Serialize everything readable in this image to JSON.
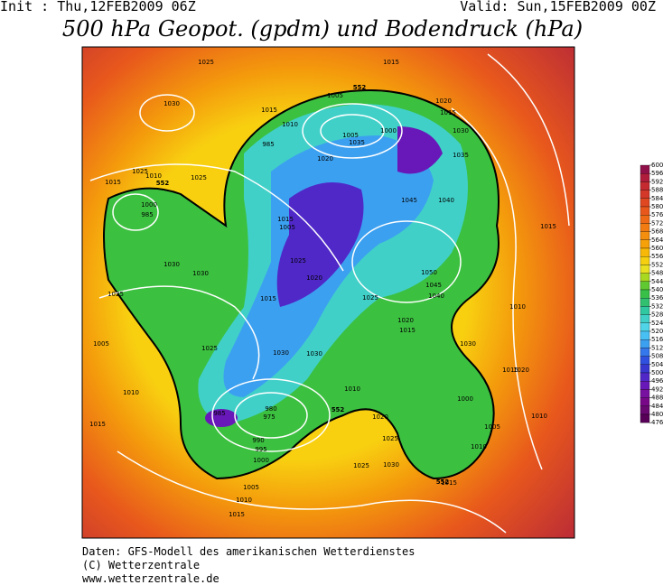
{
  "header": {
    "init": "Init : Thu,12FEB2009 06Z",
    "valid": "Valid: Sun,15FEB2009 00Z",
    "title": "500 hPa Geopot. (gpdm) und Bodendruck (hPa)"
  },
  "colorbar": {
    "levels": [
      600,
      596,
      592,
      588,
      584,
      580,
      576,
      572,
      568,
      564,
      560,
      556,
      552,
      548,
      544,
      540,
      536,
      532,
      528,
      524,
      520,
      516,
      512,
      508,
      504,
      500,
      496,
      492,
      488,
      484,
      480,
      476
    ],
    "colors": [
      "#90104a",
      "#b01c3c",
      "#c42a30",
      "#d43828",
      "#e04822",
      "#e8581c",
      "#ee6a16",
      "#f27c12",
      "#f48e0e",
      "#f6a00a",
      "#f8b808",
      "#f6d010",
      "#e8e020",
      "#a8d820",
      "#60c830",
      "#38c048",
      "#30c070",
      "#30c8a0",
      "#40d0c8",
      "#50d4e8",
      "#48c0f4",
      "#3ca0f0",
      "#3478ec",
      "#3050e0",
      "#3838d0",
      "#5028c8",
      "#6818b8",
      "#7810a0",
      "#780888",
      "#680870",
      "#580058"
    ]
  },
  "isobar_labels": [
    "1025",
    "1015",
    "1030",
    "1005",
    "1010",
    "1015",
    "1020",
    "1015",
    "985",
    "1005",
    "1000",
    "1035",
    "1030",
    "1020",
    "1035",
    "1025",
    "1015",
    "1010",
    "1000",
    "985",
    "1025",
    "1045",
    "1040",
    "1015",
    "1005",
    "1025",
    "1030",
    "1020",
    "1050",
    "1045",
    "1040",
    "1015",
    "1020",
    "1025",
    "1030",
    "1015",
    "1005",
    "1025",
    "1030",
    "1010",
    "985",
    "980",
    "975",
    "990",
    "995",
    "1000",
    "1005",
    "1010",
    "1015",
    "1020",
    "1025",
    "1000",
    "1005",
    "1010",
    "1015",
    "1030",
    "1025",
    "1015",
    "1010",
    "1025",
    "1030",
    "1030",
    "1020",
    "1015",
    "1010",
    "1015",
    "1010",
    "552",
    "552",
    "552",
    "552"
  ],
  "footer": [
    "Daten: GFS-Modell des amerikanischen Wetterdienstes",
    "(C) Wetterzentrale",
    "www.wetterzentrale.de"
  ]
}
